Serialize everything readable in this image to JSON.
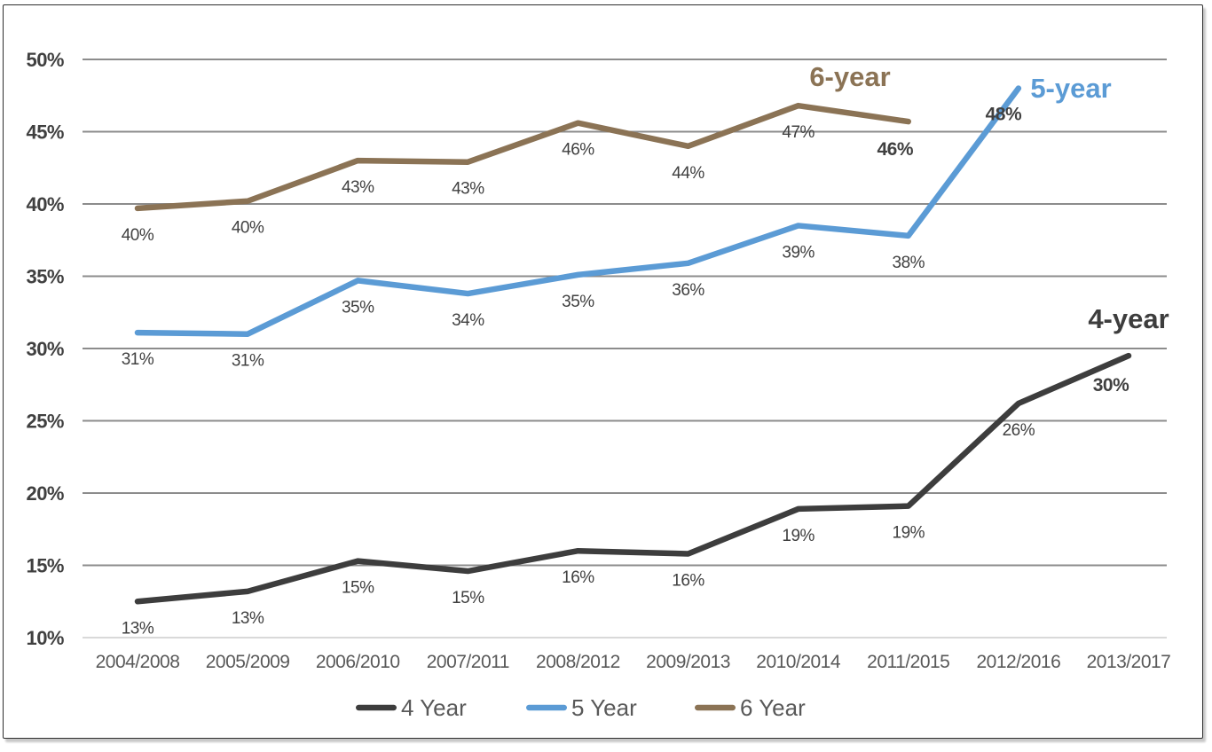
{
  "chart_data": {
    "type": "line",
    "title": "",
    "xlabel": "",
    "ylabel": "",
    "categories": [
      "2004/2008",
      "2005/2009",
      "2006/2010",
      "2007/2011",
      "2008/2012",
      "2009/2013",
      "2010/2014",
      "2011/2015",
      "2012/2016",
      "2013/2017"
    ],
    "ylim": [
      10,
      50
    ],
    "ytick_step": 5,
    "yticks": [
      {
        "label": "50%",
        "value": 50
      },
      {
        "label": "45%",
        "value": 45
      },
      {
        "label": "40%",
        "value": 40
      },
      {
        "label": "35%",
        "value": 35
      },
      {
        "label": "30%",
        "value": 30
      },
      {
        "label": "25%",
        "value": 25
      },
      {
        "label": "20%",
        "value": 20
      },
      {
        "label": "15%",
        "value": 15
      },
      {
        "label": "10%",
        "value": 10
      }
    ],
    "grid": "horizontal",
    "series": [
      {
        "name": "4 Year",
        "annotation": "4-year",
        "color": "#3d3d3d",
        "values": [
          12.5,
          13.2,
          15.3,
          14.6,
          16.0,
          15.8,
          18.9,
          19.1,
          26.2,
          29.5
        ],
        "labels": [
          "13%",
          "13%",
          "15%",
          "15%",
          "16%",
          "16%",
          "19%",
          "19%",
          "26%",
          "30%"
        ],
        "last_label_bold": true
      },
      {
        "name": "5 Year",
        "annotation": "5-year",
        "color": "#5B9BD5",
        "values": [
          31.1,
          31.0,
          34.7,
          33.8,
          35.1,
          35.9,
          38.5,
          37.8,
          48.0
        ],
        "labels": [
          "31%",
          "31%",
          "35%",
          "34%",
          "35%",
          "36%",
          "39%",
          "38%",
          "48%"
        ],
        "last_label_bold": true
      },
      {
        "name": "6 Year",
        "annotation": "6-year",
        "color": "#8B7355",
        "values": [
          39.7,
          40.2,
          43.0,
          42.9,
          45.6,
          44.0,
          46.8,
          45.7
        ],
        "labels": [
          "40%",
          "40%",
          "43%",
          "43%",
          "46%",
          "44%",
          "47%",
          "46%"
        ],
        "last_label_bold": true
      }
    ],
    "legend": {
      "position": "bottom",
      "items": [
        "4 Year",
        "5 Year",
        "6 Year"
      ]
    }
  },
  "colors": {
    "background": "#ffffff",
    "gridline": "#8C8C8C",
    "gridline_bottom": "#D9D9D9",
    "y_tick_label": "#404040",
    "category_label": "#595959",
    "data_label": "#404040",
    "legend_text": "#595959",
    "frame_border": "#2e2e2e"
  }
}
